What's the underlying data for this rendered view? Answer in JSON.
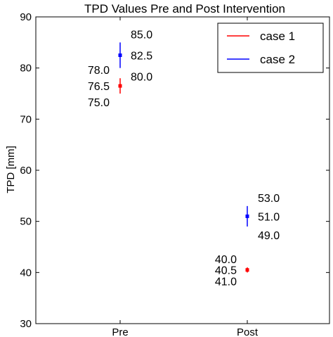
{
  "chart_data": {
    "type": "scatter",
    "title": "TPD Values Pre and Post Intervention",
    "xlabel": "",
    "ylabel": "TPD  [mm]",
    "categories": [
      "Pre",
      "Post"
    ],
    "ylim": [
      30,
      90
    ],
    "yticks": [
      30,
      40,
      50,
      60,
      70,
      80,
      90
    ],
    "grid": false,
    "legend_position": "top-right",
    "series": [
      {
        "name": "case 1",
        "color": "#ff0000",
        "points": [
          {
            "category": "Pre",
            "value": 76.5,
            "low": 75.0,
            "high": 78.0,
            "labels": [
              "78.0",
              "76.5",
              "75.0"
            ],
            "label_side": "left"
          },
          {
            "category": "Post",
            "value": 40.5,
            "low": 40.0,
            "high": 41.0,
            "labels": [
              "40.0",
              "40.5",
              "41.0"
            ],
            "label_side": "left"
          }
        ]
      },
      {
        "name": "case 2",
        "color": "#0000ff",
        "points": [
          {
            "category": "Pre",
            "value": 82.5,
            "low": 80.0,
            "high": 85.0,
            "labels": [
              "85.0",
              "82.5",
              "80.0"
            ],
            "label_side": "right"
          },
          {
            "category": "Post",
            "value": 51.0,
            "low": 49.0,
            "high": 53.0,
            "labels": [
              "53.0",
              "51.0",
              "49.0"
            ],
            "label_side": "right"
          }
        ]
      }
    ]
  }
}
